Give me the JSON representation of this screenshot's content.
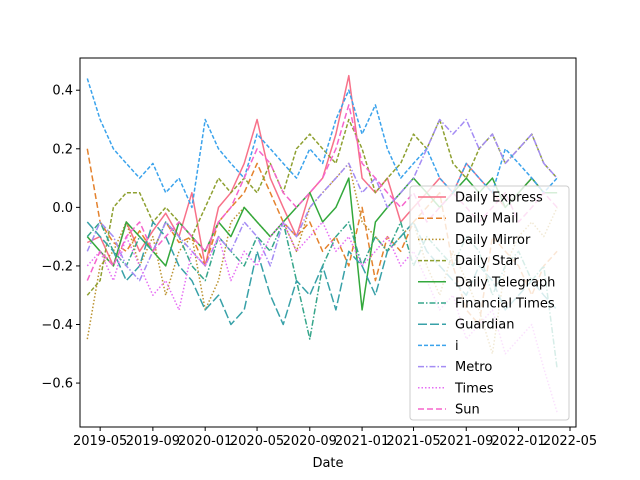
{
  "chart_data": {
    "type": "line",
    "title": "",
    "xlabel": "Date",
    "ylabel": "",
    "xlim": [
      "2019-03-15",
      "2022-05-15"
    ],
    "ylim": [
      -0.75,
      0.51
    ],
    "x_ticks": [
      "2019-05",
      "2019-09",
      "2020-01",
      "2020-05",
      "2020-09",
      "2021-01",
      "2021-05",
      "2021-09",
      "2022-01",
      "2022-05"
    ],
    "y_ticks": [
      -0.6,
      -0.4,
      -0.2,
      0.0,
      0.2,
      0.4
    ],
    "y_tick_labels": [
      "−0.6",
      "−0.4",
      "−0.2",
      "0.0",
      "0.2",
      "0.4"
    ],
    "grid": false,
    "legend_position": "lower-right",
    "x": [
      "2019-04-01",
      "2019-05-01",
      "2019-06-01",
      "2019-07-01",
      "2019-08-01",
      "2019-09-01",
      "2019-10-01",
      "2019-11-01",
      "2019-12-01",
      "2020-01-01",
      "2020-02-01",
      "2020-03-01",
      "2020-04-01",
      "2020-05-01",
      "2020-06-01",
      "2020-07-01",
      "2020-08-01",
      "2020-09-01",
      "2020-10-01",
      "2020-11-01",
      "2020-12-01",
      "2021-01-01",
      "2021-02-01",
      "2021-03-01",
      "2021-04-01",
      "2021-05-01",
      "2021-06-01",
      "2021-07-01",
      "2021-08-01",
      "2021-09-01",
      "2021-10-01",
      "2021-11-01",
      "2021-12-01",
      "2022-01-01",
      "2022-02-01",
      "2022-03-01",
      "2022-04-01"
    ],
    "series": [
      {
        "name": "Daily Express",
        "color": "#f77189",
        "dash": "",
        "values": [
          -0.12,
          -0.1,
          -0.2,
          -0.05,
          -0.15,
          -0.08,
          -0.02,
          -0.1,
          0.05,
          -0.2,
          0.0,
          0.05,
          0.15,
          0.3,
          0.1,
          0.0,
          -0.1,
          0.05,
          0.1,
          0.25,
          0.45,
          0.1,
          0.05,
          0.1,
          -0.05,
          0.0,
          0.05,
          0.1,
          0.05,
          0.15,
          0.1,
          0.05,
          0.0,
          0.05,
          0.1,
          0.05,
          0.05
        ]
      },
      {
        "name": "Daily Mail",
        "color": "#e4822d",
        "dash": "6,3",
        "values": [
          0.2,
          -0.05,
          -0.12,
          -0.15,
          -0.08,
          -0.15,
          -0.05,
          -0.12,
          -0.1,
          -0.2,
          -0.05,
          0.0,
          0.05,
          0.15,
          0.05,
          -0.05,
          -0.1,
          -0.05,
          -0.15,
          -0.1,
          -0.2,
          0.0,
          -0.25,
          -0.1,
          -0.15,
          -0.05,
          0.0,
          0.05,
          -0.2,
          -0.35,
          -0.4,
          -0.1,
          -0.15,
          -0.2,
          -0.3,
          -0.2,
          -0.15
        ]
      },
      {
        "name": "Daily Mirror",
        "color": "#bb9331",
        "dash": "1.5,2",
        "values": [
          -0.45,
          -0.2,
          -0.15,
          -0.05,
          -0.2,
          -0.1,
          -0.3,
          -0.15,
          -0.1,
          -0.35,
          -0.25,
          -0.05,
          0.0,
          -0.05,
          -0.1,
          -0.05,
          -0.15,
          0.0,
          0.05,
          0.1,
          0.15,
          -0.05,
          -0.1,
          -0.15,
          -0.1,
          -0.05,
          -0.2,
          -0.3,
          -0.15,
          -0.25,
          -0.35,
          -0.5,
          -0.2,
          -0.1,
          -0.05,
          -0.1,
          0.0
        ]
      },
      {
        "name": "Daily Star",
        "color": "#8ea031",
        "dash": "4,2",
        "values": [
          -0.3,
          -0.25,
          0.0,
          0.05,
          0.05,
          -0.05,
          0.0,
          -0.05,
          -0.1,
          0.0,
          0.1,
          0.05,
          0.1,
          0.05,
          0.15,
          0.05,
          0.2,
          0.25,
          0.2,
          0.15,
          0.3,
          0.2,
          0.05,
          0.1,
          0.15,
          0.25,
          0.2,
          0.3,
          0.15,
          0.1,
          0.2,
          0.25,
          0.15,
          0.2,
          0.25,
          0.15,
          0.1
        ]
      },
      {
        "name": "Daily Telegraph",
        "color": "#33a83c",
        "dash": "",
        "values": [
          -0.1,
          -0.15,
          -0.2,
          -0.05,
          -0.1,
          -0.15,
          -0.2,
          -0.05,
          -0.1,
          -0.15,
          -0.05,
          -0.1,
          0.0,
          -0.05,
          -0.1,
          -0.05,
          0.0,
          0.05,
          -0.05,
          0.0,
          0.1,
          -0.35,
          -0.05,
          0.0,
          0.05,
          0.1,
          0.05,
          0.0,
          0.05,
          0.1,
          0.05,
          0.1,
          0.0,
          0.05,
          0.1,
          0.05,
          0.05
        ]
      },
      {
        "name": "Financial Times",
        "color": "#36a68b",
        "dash": "6,2,1.5,2",
        "values": [
          -0.1,
          -0.05,
          -0.15,
          -0.2,
          -0.1,
          -0.15,
          -0.05,
          -0.1,
          -0.2,
          -0.25,
          -0.1,
          -0.15,
          -0.2,
          -0.1,
          -0.15,
          -0.05,
          -0.25,
          -0.45,
          -0.2,
          -0.1,
          -0.05,
          -0.2,
          -0.1,
          -0.15,
          -0.05,
          -0.2,
          -0.1,
          -0.15,
          -0.2,
          -0.1,
          -0.15,
          -0.3,
          -0.2,
          -0.15,
          -0.25,
          -0.2,
          -0.55
        ]
      },
      {
        "name": "Guardian",
        "color": "#38a1a8",
        "dash": "9,3",
        "values": [
          -0.05,
          -0.1,
          -0.15,
          -0.25,
          -0.2,
          -0.05,
          -0.1,
          -0.2,
          -0.25,
          -0.35,
          -0.3,
          -0.4,
          -0.35,
          -0.15,
          -0.3,
          -0.4,
          -0.25,
          -0.3,
          -0.2,
          -0.35,
          -0.15,
          -0.2,
          -0.3,
          -0.15,
          -0.1,
          -0.05,
          -0.15,
          -0.2,
          -0.25,
          -0.3,
          -0.2,
          -0.25,
          -0.35,
          -0.3,
          -0.25,
          -0.3,
          -0.35
        ]
      },
      {
        "name": "i",
        "color": "#3ba3ec",
        "dash": "4,2",
        "values": [
          0.44,
          0.3,
          0.2,
          0.15,
          0.1,
          0.15,
          0.05,
          0.1,
          0.0,
          0.3,
          0.2,
          0.15,
          0.1,
          0.25,
          0.2,
          0.15,
          0.1,
          0.2,
          0.15,
          0.3,
          0.4,
          0.25,
          0.35,
          0.2,
          0.1,
          0.15,
          0.2,
          0.1,
          0.05,
          0.15,
          0.1,
          0.05,
          0.2,
          0.15,
          0.1,
          0.05,
          0.1
        ]
      },
      {
        "name": "Metro",
        "color": "#a48cf4",
        "dash": "6,2,1.5,2",
        "values": [
          -0.15,
          -0.05,
          -0.1,
          -0.2,
          -0.25,
          -0.15,
          -0.05,
          -0.1,
          -0.15,
          -0.2,
          -0.1,
          -0.15,
          -0.05,
          -0.1,
          -0.2,
          -0.05,
          -0.1,
          0.0,
          0.05,
          0.1,
          0.15,
          0.05,
          0.1,
          0.0,
          0.05,
          0.1,
          0.2,
          0.3,
          0.25,
          0.3,
          0.2,
          0.25,
          0.15,
          0.2,
          0.25,
          0.15,
          0.1
        ]
      },
      {
        "name": "Times",
        "color": "#e66ef4",
        "dash": "1.5,2",
        "values": [
          -0.2,
          -0.15,
          -0.25,
          -0.1,
          -0.2,
          -0.3,
          -0.25,
          -0.35,
          -0.15,
          -0.2,
          -0.1,
          -0.25,
          -0.15,
          -0.2,
          -0.1,
          -0.05,
          -0.15,
          -0.1,
          -0.05,
          -0.15,
          -0.1,
          -0.2,
          -0.15,
          -0.1,
          -0.2,
          -0.15,
          -0.25,
          -0.35,
          -0.3,
          -0.45,
          -0.4,
          -0.35,
          -0.5,
          -0.45,
          -0.4,
          -0.55,
          -0.7
        ]
      },
      {
        "name": "Sun",
        "color": "#f565cc",
        "dash": "6,3",
        "values": [
          -0.25,
          -0.15,
          -0.2,
          -0.1,
          -0.05,
          -0.15,
          -0.1,
          -0.05,
          -0.1,
          -0.15,
          -0.05,
          0.0,
          0.1,
          0.2,
          0.15,
          0.05,
          0.0,
          0.05,
          0.1,
          0.2,
          0.35,
          0.15,
          0.1,
          0.05,
          0.0,
          0.05,
          -0.05,
          0.0,
          0.05,
          0.0,
          -0.05,
          0.0,
          0.05,
          -0.05,
          0.0,
          0.05,
          0.0
        ]
      }
    ]
  }
}
